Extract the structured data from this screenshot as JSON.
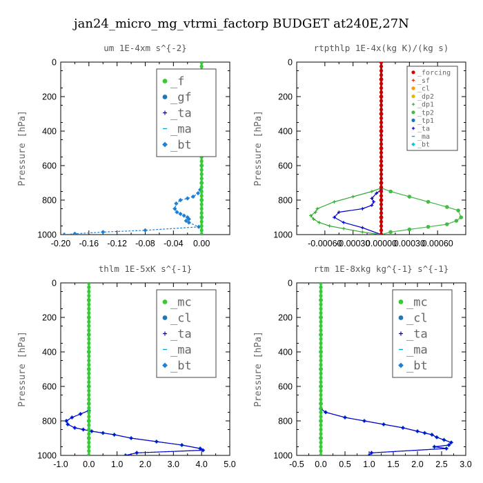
{
  "figure_title": "jan24_micro_mg_vtrmi_factorp  BUDGET at240E,27N",
  "chart_data": [
    {
      "type": "line",
      "title": "um  1E-4xm s^{-2}",
      "ylabel": "Pressure [hPa]",
      "xlim": [
        -0.2,
        0.04
      ],
      "ylim": [
        1000,
        0
      ],
      "xticks": [
        "-0.20",
        "-0.16",
        "-0.12",
        "-0.08",
        "-0.04",
        "0.00"
      ],
      "xtick_values": [
        -0.2,
        -0.16,
        -0.12,
        -0.08,
        -0.04,
        0.0
      ],
      "yticks": [
        0,
        200,
        400,
        600,
        800,
        1000
      ],
      "legend_position": "top-right",
      "legend_size": "large",
      "series": [
        {
          "name": "_f",
          "color": "#33cc33",
          "marker": "circle",
          "x": [
            0,
            0,
            0,
            0,
            0,
            0,
            0,
            0,
            0,
            0,
            0
          ],
          "y": [
            0,
            100,
            200,
            300,
            400,
            500,
            600,
            700,
            800,
            900,
            1000
          ]
        },
        {
          "name": "_gf",
          "color": "#1f77b4",
          "marker": "circle",
          "x": [
            0,
            0,
            0,
            0,
            0,
            0,
            0,
            0,
            0,
            0,
            0
          ],
          "y": [
            0,
            100,
            200,
            300,
            400,
            500,
            600,
            700,
            800,
            900,
            1000
          ]
        },
        {
          "name": "_ta",
          "color": "#0000cc",
          "marker": "plus",
          "x": [
            0,
            0,
            0,
            0,
            0,
            0,
            0,
            0,
            0,
            0,
            0
          ],
          "y": [
            0,
            100,
            200,
            300,
            400,
            500,
            600,
            700,
            800,
            900,
            1000
          ]
        },
        {
          "name": "_ma",
          "color": "#00aacc",
          "marker": "dash",
          "x": [
            0,
            0,
            0,
            0,
            0,
            0,
            0,
            0,
            0,
            0,
            0
          ],
          "y": [
            0,
            100,
            200,
            300,
            400,
            500,
            600,
            700,
            800,
            900,
            1000
          ]
        },
        {
          "name": "_bt",
          "color": "#1e7fd6",
          "marker": "diamond",
          "dashed": true,
          "x": [
            0,
            0,
            0,
            -0.002,
            -0.005,
            -0.012,
            -0.02,
            -0.03,
            -0.036,
            -0.038,
            -0.035,
            -0.03,
            -0.025,
            -0.02,
            -0.018,
            -0.022,
            -0.018,
            -0.004,
            -0.08,
            -0.14,
            -0.18,
            -0.195
          ],
          "y": [
            0,
            300,
            700,
            740,
            760,
            780,
            790,
            800,
            820,
            850,
            870,
            880,
            890,
            900,
            910,
            920,
            930,
            955,
            975,
            985,
            995,
            1000
          ]
        }
      ]
    },
    {
      "type": "line",
      "title": "rtpthlp  1E-4x(kg K)/(kg s)",
      "ylabel": "Pressure [hPa]",
      "xlim": [
        -0.0009,
        0.0009
      ],
      "ylim": [
        1000,
        0
      ],
      "xticks": [
        "-0.00060",
        "-0.00030",
        "0.00000",
        "0.00030",
        "0.00060"
      ],
      "xtick_values": [
        -0.0006,
        -0.0003,
        0.0,
        0.0003,
        0.0006
      ],
      "yticks": [
        0,
        200,
        400,
        600,
        800,
        1000
      ],
      "legend_position": "top-right",
      "legend_size": "small",
      "series": [
        {
          "name": "_forcing",
          "color": "#cc0000",
          "marker": "circle",
          "x": [
            0,
            0,
            0,
            0,
            0,
            0,
            0,
            0,
            0,
            0,
            0
          ],
          "y": [
            0,
            100,
            200,
            300,
            400,
            500,
            600,
            700,
            800,
            900,
            1000
          ]
        },
        {
          "name": "_sf",
          "color": "#dd2222",
          "marker": "plus",
          "x": [
            0,
            0,
            0,
            0,
            0,
            0,
            0,
            0,
            0,
            0,
            0
          ],
          "y": [
            0,
            100,
            200,
            300,
            400,
            500,
            600,
            700,
            800,
            900,
            1000
          ]
        },
        {
          "name": "_cl",
          "color": "#ff9900",
          "marker": "circle",
          "x": [
            0,
            0,
            0,
            0,
            0,
            0,
            0,
            0,
            0,
            0,
            0
          ],
          "y": [
            0,
            100,
            200,
            300,
            400,
            500,
            600,
            700,
            800,
            900,
            1000
          ]
        },
        {
          "name": "_dp2",
          "color": "#ddbb00",
          "marker": "circle",
          "x": [
            0,
            0,
            0,
            0,
            0,
            0,
            0,
            0,
            0,
            0,
            0
          ],
          "y": [
            0,
            100,
            200,
            300,
            400,
            500,
            600,
            700,
            800,
            900,
            1000
          ]
        },
        {
          "name": "_dp1",
          "color": "#33aa33",
          "marker": "plus",
          "x": [
            0,
            0,
            -0.0001,
            -0.0003,
            -0.0005,
            -0.00068,
            -0.0007,
            -0.00075,
            -0.00072,
            -0.00066,
            -0.00055,
            -0.0004,
            -0.0002,
            0
          ],
          "y": [
            0,
            730,
            750,
            780,
            810,
            850,
            870,
            890,
            910,
            930,
            950,
            965,
            985,
            1000
          ]
        },
        {
          "name": "_tp2",
          "color": "#44bb44",
          "marker": "circle",
          "x": [
            0,
            0,
            0.0001,
            0.0003,
            0.0005,
            0.0007,
            0.00082,
            0.00085,
            0.0008,
            0.0007,
            0.0005,
            0.0003,
            0.0001,
            0
          ],
          "y": [
            0,
            730,
            750,
            780,
            810,
            840,
            860,
            900,
            920,
            940,
            955,
            970,
            985,
            1000
          ]
        },
        {
          "name": "_tp1",
          "color": "#1f77b4",
          "marker": "circle",
          "x": [
            0,
            0,
            0,
            0,
            0,
            0,
            0,
            0,
            0,
            0,
            0
          ],
          "y": [
            0,
            100,
            200,
            300,
            400,
            500,
            600,
            700,
            800,
            900,
            1000
          ]
        },
        {
          "name": "_ta",
          "color": "#0000cc",
          "marker": "plus",
          "x": [
            0,
            0,
            -5e-05,
            -0.0001,
            -8e-05,
            -0.0001,
            -0.0002,
            -0.00045,
            -0.0005,
            -0.0004,
            -0.0002,
            0
          ],
          "y": [
            0,
            740,
            760,
            790,
            810,
            830,
            850,
            870,
            900,
            930,
            960,
            1000
          ]
        },
        {
          "name": "_ma",
          "color": "#00aacc",
          "marker": "dash",
          "x": [
            0,
            0,
            0,
            0,
            0,
            0,
            0,
            0,
            0,
            0,
            0
          ],
          "y": [
            0,
            100,
            200,
            300,
            400,
            500,
            600,
            700,
            800,
            900,
            1000
          ]
        },
        {
          "name": "_bt",
          "color": "#00ccdd",
          "marker": "diamond",
          "x": [
            0,
            0,
            0,
            0,
            0,
            0,
            0,
            0,
            0,
            0,
            0
          ],
          "y": [
            0,
            100,
            200,
            300,
            400,
            500,
            600,
            700,
            800,
            900,
            1000
          ]
        }
      ]
    },
    {
      "type": "line",
      "title": "thlm  1E-5xK s^{-1}",
      "ylabel": "Pressure [hPa]",
      "xlim": [
        -1.0,
        5.0
      ],
      "ylim": [
        1000,
        0
      ],
      "xticks": [
        "-1.0",
        "0.0",
        "1.0",
        "2.0",
        "3.0",
        "4.0",
        "5.0"
      ],
      "xtick_values": [
        -1.0,
        0.0,
        1.0,
        2.0,
        3.0,
        4.0,
        5.0
      ],
      "yticks": [
        0,
        200,
        400,
        600,
        800,
        1000
      ],
      "legend_position": "top-right",
      "legend_size": "large",
      "series": [
        {
          "name": "_mc",
          "color": "#33cc33",
          "marker": "circle",
          "x": [
            0,
            0,
            0,
            0,
            0,
            0,
            0,
            0,
            0,
            0,
            0
          ],
          "y": [
            0,
            100,
            200,
            300,
            400,
            500,
            600,
            700,
            800,
            900,
            1000
          ]
        },
        {
          "name": "_cl",
          "color": "#1f77b4",
          "marker": "circle",
          "x": [
            0,
            0,
            0,
            0,
            0,
            0,
            0,
            0,
            0,
            0,
            0
          ],
          "y": [
            0,
            100,
            200,
            300,
            400,
            500,
            600,
            700,
            800,
            900,
            1000
          ]
        },
        {
          "name": "_ta",
          "color": "#0000cc",
          "marker": "plus",
          "x": [
            0,
            0,
            -0.3,
            -0.6,
            -0.8,
            -0.75,
            -0.5,
            -0.2,
            0.1,
            0.5,
            0.9,
            1.5,
            2.4,
            3.3,
            3.95,
            4.05,
            1.7,
            1.3
          ],
          "y": [
            0,
            740,
            760,
            780,
            800,
            820,
            840,
            850,
            860,
            870,
            880,
            900,
            920,
            940,
            960,
            970,
            985,
            1000
          ]
        },
        {
          "name": "_ma",
          "color": "#00aacc",
          "marker": "dash",
          "x": [
            0,
            0,
            0,
            0,
            0,
            0,
            0,
            0,
            0,
            0,
            0
          ],
          "y": [
            0,
            100,
            200,
            300,
            400,
            500,
            600,
            700,
            800,
            900,
            1000
          ]
        },
        {
          "name": "_bt",
          "color": "#1e7fd6",
          "marker": "diamond",
          "dashed": true,
          "x": [
            0,
            0,
            -0.3,
            -0.6,
            -0.8,
            -0.75,
            -0.5,
            -0.2,
            0.1,
            0.5,
            0.9,
            1.5,
            2.4,
            3.3,
            3.95,
            4.05,
            1.7,
            1.3
          ],
          "y": [
            0,
            740,
            760,
            780,
            800,
            820,
            840,
            850,
            860,
            870,
            880,
            900,
            920,
            940,
            960,
            970,
            985,
            1000
          ]
        }
      ]
    },
    {
      "type": "line",
      "title": "rtm  1E-8xkg kg^{-1} s^{-1}",
      "ylabel": "Pressure [hPa]",
      "xlim": [
        -0.5,
        3.0
      ],
      "ylim": [
        1000,
        0
      ],
      "xticks": [
        "-0.5",
        "0.0",
        "0.5",
        "1.0",
        "1.5",
        "2.0",
        "2.5",
        "3.0"
      ],
      "xtick_values": [
        -0.5,
        0.0,
        0.5,
        1.0,
        1.5,
        2.0,
        2.5,
        3.0
      ],
      "yticks": [
        0,
        200,
        400,
        600,
        800,
        1000
      ],
      "legend_position": "top-right",
      "legend_size": "large",
      "series": [
        {
          "name": "_mc",
          "color": "#33cc33",
          "marker": "circle",
          "x": [
            0,
            0,
            0,
            0,
            0,
            0,
            0,
            0,
            0,
            0,
            0
          ],
          "y": [
            0,
            100,
            200,
            300,
            400,
            500,
            600,
            700,
            800,
            900,
            1000
          ]
        },
        {
          "name": "_cl",
          "color": "#1f77b4",
          "marker": "circle",
          "x": [
            0,
            0,
            0,
            0,
            0,
            0,
            0,
            0,
            0,
            0,
            0
          ],
          "y": [
            0,
            100,
            200,
            300,
            400,
            500,
            600,
            700,
            800,
            900,
            1000
          ]
        },
        {
          "name": "_ta",
          "color": "#0000cc",
          "marker": "plus",
          "x": [
            0,
            0,
            0.1,
            0.5,
            0.9,
            1.3,
            1.7,
            2.0,
            2.15,
            2.3,
            2.4,
            2.55,
            2.7,
            2.65,
            2.35,
            2.6,
            1.05,
            1.0
          ],
          "y": [
            0,
            730,
            750,
            780,
            800,
            820,
            840,
            860,
            870,
            880,
            895,
            910,
            925,
            940,
            950,
            960,
            985,
            1000
          ]
        },
        {
          "name": "_ma",
          "color": "#00aacc",
          "marker": "dash",
          "x": [
            0,
            0,
            0,
            0,
            0,
            0,
            0,
            0,
            0,
            0,
            0
          ],
          "y": [
            0,
            100,
            200,
            300,
            400,
            500,
            600,
            700,
            800,
            900,
            1000
          ]
        },
        {
          "name": "_bt",
          "color": "#1e7fd6",
          "marker": "diamond",
          "dashed": true,
          "x": [
            0,
            0,
            0.1,
            0.5,
            0.9,
            1.3,
            1.7,
            2.0,
            2.15,
            2.3,
            2.4,
            2.55,
            2.7,
            2.65,
            2.35,
            2.6,
            1.05,
            1.0
          ],
          "y": [
            0,
            730,
            750,
            780,
            800,
            820,
            840,
            860,
            870,
            880,
            895,
            910,
            925,
            940,
            950,
            960,
            985,
            1000
          ]
        }
      ]
    }
  ]
}
